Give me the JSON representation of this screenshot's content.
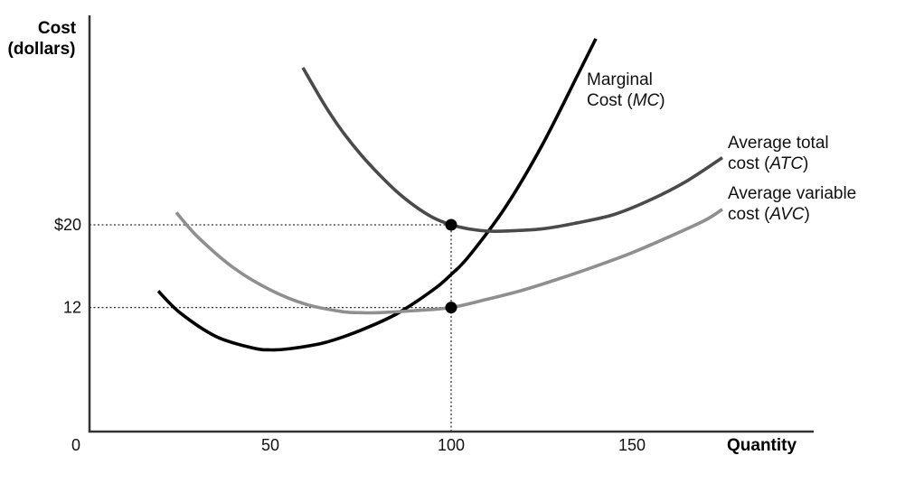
{
  "chart_data": {
    "type": "line",
    "xlabel": "Quantity",
    "ylabel_line1": "Cost",
    "ylabel_line2": "(dollars)",
    "origin_label": "0",
    "x_ticks": [
      50,
      100,
      150
    ],
    "y_ticks": [
      {
        "value": 20,
        "label": "$20"
      },
      {
        "value": 12,
        "label": "12"
      }
    ],
    "xlim": [
      0,
      200
    ],
    "ylim": [
      0,
      40
    ],
    "grid": false,
    "reference_lines": [
      {
        "axis": "y",
        "value": 20,
        "to_x": 100,
        "style": "dotted"
      },
      {
        "axis": "y",
        "value": 12,
        "to_x": 100,
        "style": "dotted"
      },
      {
        "axis": "x",
        "value": 100,
        "to_y": 20,
        "style": "dotted"
      }
    ],
    "points": [
      {
        "x": 100,
        "y": 20
      },
      {
        "x": 100,
        "y": 12
      }
    ],
    "series": [
      {
        "id": "mc",
        "label_line1": "Marginal",
        "label_line2_plain": "Cost (",
        "label_line2_ital": "MC",
        "label_line2_end": ")",
        "color": "#000000",
        "width": 3.6,
        "x": [
          19,
          25,
          35,
          45,
          50,
          55,
          65,
          75,
          85,
          95,
          100,
          105,
          115,
          125,
          135,
          140
        ],
        "y": [
          13.6,
          11.5,
          9.2,
          8.1,
          7.9,
          8.0,
          8.6,
          9.8,
          11.4,
          13.7,
          15.2,
          17.0,
          21.7,
          27.6,
          34.5,
          38.0
        ]
      },
      {
        "id": "atc",
        "label_line1": "Average total",
        "label_line2_plain": "cost (",
        "label_line2_ital": "ATC",
        "label_line2_end": ")",
        "color": "#4a4a4a",
        "width": 3.6,
        "x": [
          59,
          65,
          70,
          75,
          80,
          85,
          90,
          95,
          100,
          105,
          110,
          115,
          125,
          135,
          145,
          155,
          165,
          175
        ],
        "y": [
          35.2,
          31.6,
          29.0,
          26.8,
          24.9,
          23.2,
          21.8,
          20.7,
          20.0,
          19.6,
          19.4,
          19.4,
          19.6,
          20.2,
          21.0,
          22.4,
          24.2,
          26.5
        ]
      },
      {
        "id": "avc",
        "label_line1": "Average variable",
        "label_line2_plain": "cost (",
        "label_line2_ital": "AVC",
        "label_line2_end": ")",
        "color": "#8f8f8f",
        "width": 3.6,
        "x": [
          24,
          30,
          40,
          50,
          60,
          70,
          75,
          80,
          90,
          100,
          110,
          120,
          130,
          140,
          150,
          160,
          170,
          175
        ],
        "y": [
          21.2,
          18.8,
          15.8,
          13.7,
          12.3,
          11.6,
          11.5,
          11.5,
          11.7,
          12.0,
          12.8,
          13.7,
          14.8,
          16.0,
          17.3,
          18.8,
          20.4,
          21.5
        ]
      }
    ]
  }
}
